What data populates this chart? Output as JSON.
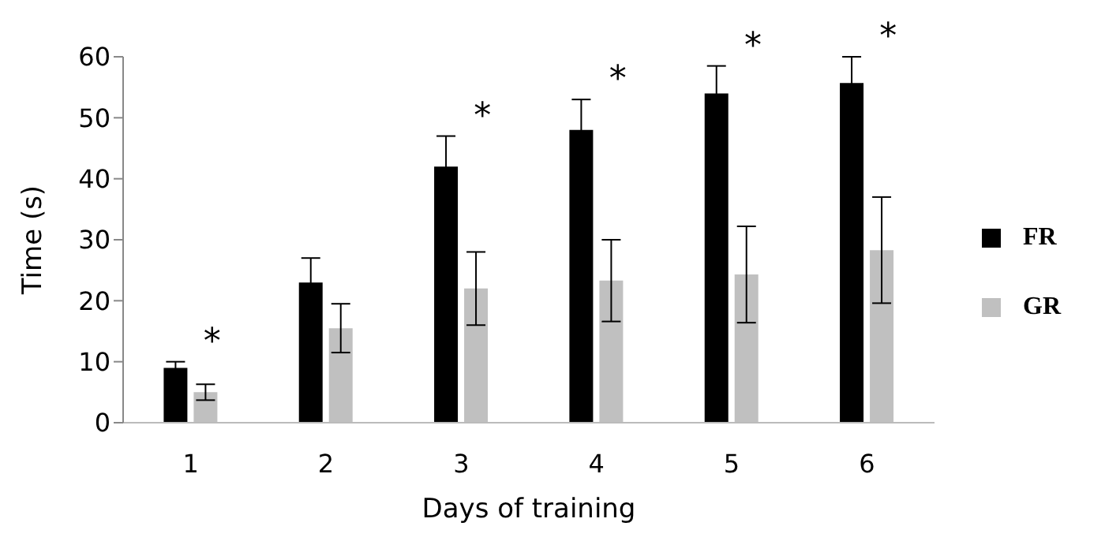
{
  "chart_data": {
    "type": "bar",
    "xlabel": "Days of training",
    "ylabel": "Time (s)",
    "categories": [
      "1",
      "2",
      "3",
      "4",
      "5",
      "6"
    ],
    "series": [
      {
        "name": "FR",
        "color": "#000000",
        "values": [
          9,
          23,
          42,
          48,
          54,
          55.7
        ],
        "errors": [
          1,
          4,
          5,
          5,
          4.5,
          4.3
        ]
      },
      {
        "name": "GR",
        "color": "#c0c0c0",
        "values": [
          5,
          15.5,
          22,
          23.3,
          24.3,
          28.3
        ],
        "errors": [
          1.3,
          4,
          6,
          6.7,
          7.9,
          8.7
        ]
      }
    ],
    "ylim": [
      0,
      60
    ],
    "yticks": [
      0,
      10,
      20,
      30,
      40,
      50,
      60
    ],
    "legend": "right",
    "grid": false,
    "annotations": [
      {
        "text": "*",
        "x": "1",
        "y": 9
      },
      {
        "text": "*",
        "x": "3",
        "y": 42
      },
      {
        "text": "*",
        "x": "4",
        "y": 48
      },
      {
        "text": "*",
        "x": "5",
        "y": 54
      },
      {
        "text": "*",
        "x": "6",
        "y": 55.7
      }
    ]
  }
}
